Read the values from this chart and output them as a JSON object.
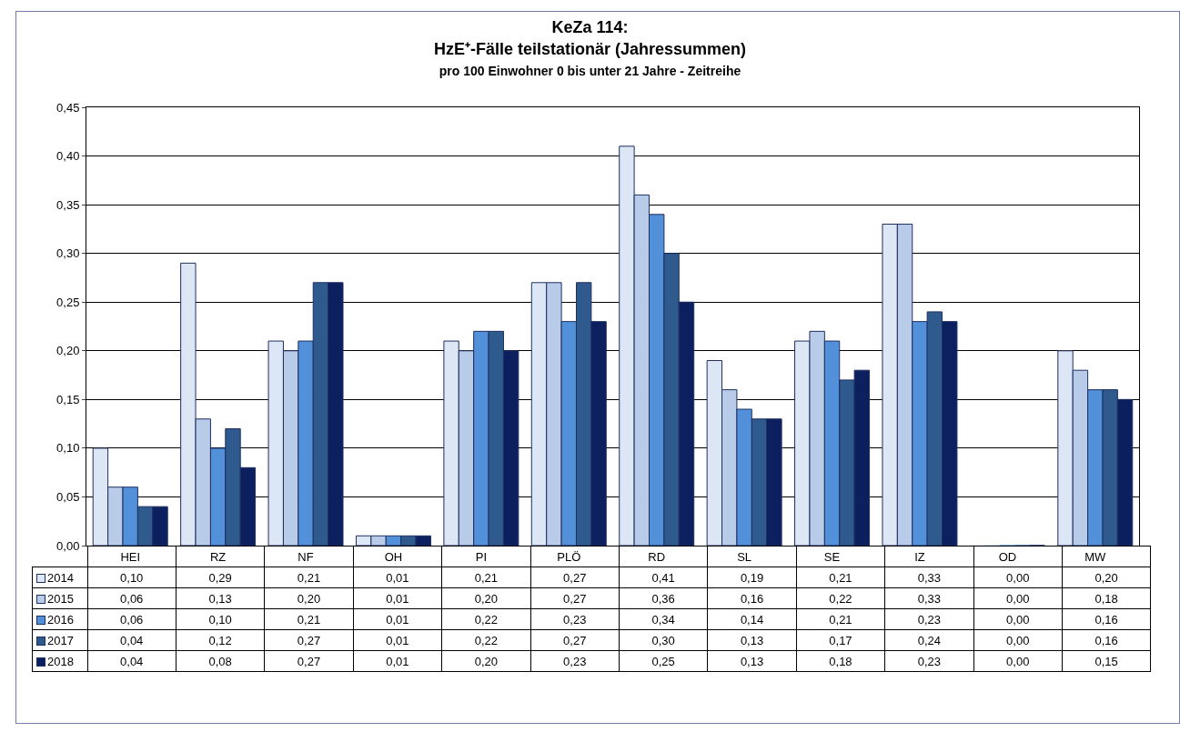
{
  "chart_data": {
    "type": "bar",
    "title": "KeZa 114:\nHzE⁺-Fälle teilstationär (Jahressummen)",
    "subtitle": "pro 100 Einwohner 0 bis unter 21 Jahre - Zeitreihe",
    "categories": [
      "HEI",
      "RZ",
      "NF",
      "OH",
      "PI",
      "PLÖ",
      "RD",
      "SL",
      "SE",
      "IZ",
      "OD",
      "MW"
    ],
    "series": [
      {
        "name": "2014",
        "color": "#dce6f5",
        "values": [
          0.1,
          0.29,
          0.21,
          0.01,
          0.21,
          0.27,
          0.41,
          0.19,
          0.21,
          0.33,
          0.0,
          0.2
        ],
        "value_labels": [
          "0,10",
          "0,29",
          "0,21",
          "0,01",
          "0,21",
          "0,27",
          "0,41",
          "0,19",
          "0,21",
          "0,33",
          "0,00",
          "0,20"
        ]
      },
      {
        "name": "2015",
        "color": "#b8cce9",
        "values": [
          0.06,
          0.13,
          0.2,
          0.01,
          0.2,
          0.27,
          0.36,
          0.16,
          0.22,
          0.33,
          0.0,
          0.18
        ],
        "value_labels": [
          "0,06",
          "0,13",
          "0,20",
          "0,01",
          "0,20",
          "0,27",
          "0,36",
          "0,16",
          "0,22",
          "0,33",
          "0,00",
          "0,18"
        ]
      },
      {
        "name": "2016",
        "color": "#5290d9",
        "values": [
          0.06,
          0.1,
          0.21,
          0.01,
          0.22,
          0.23,
          0.34,
          0.14,
          0.21,
          0.23,
          0.0,
          0.16
        ],
        "value_labels": [
          "0,06",
          "0,10",
          "0,21",
          "0,01",
          "0,22",
          "0,23",
          "0,34",
          "0,14",
          "0,21",
          "0,23",
          "0,00",
          "0,16"
        ]
      },
      {
        "name": "2017",
        "color": "#2e5a8e",
        "values": [
          0.04,
          0.12,
          0.27,
          0.01,
          0.22,
          0.27,
          0.3,
          0.13,
          0.17,
          0.24,
          0.0,
          0.16
        ],
        "value_labels": [
          "0,04",
          "0,12",
          "0,27",
          "0,01",
          "0,22",
          "0,27",
          "0,30",
          "0,13",
          "0,17",
          "0,24",
          "0,00",
          "0,16"
        ]
      },
      {
        "name": "2018",
        "color": "#0c1f5e",
        "values": [
          0.04,
          0.08,
          0.27,
          0.01,
          0.2,
          0.23,
          0.25,
          0.13,
          0.18,
          0.23,
          0.0,
          0.15
        ],
        "value_labels": [
          "0,04",
          "0,08",
          "0,27",
          "0,01",
          "0,20",
          "0,23",
          "0,25",
          "0,13",
          "0,18",
          "0,23",
          "0,00",
          "0,15"
        ]
      }
    ],
    "ylim": [
      0,
      0.45
    ],
    "yticks": [
      {
        "value": 0,
        "label": "0,00"
      },
      {
        "value": 0.05,
        "label": "0,05"
      },
      {
        "value": 0.1,
        "label": "0,10"
      },
      {
        "value": 0.15,
        "label": "0,15"
      },
      {
        "value": 0.2,
        "label": "0,20"
      },
      {
        "value": 0.25,
        "label": "0,25"
      },
      {
        "value": 0.3,
        "label": "0,30"
      },
      {
        "value": 0.35,
        "label": "0,35"
      },
      {
        "value": 0.4,
        "label": "0,40"
      },
      {
        "value": 0.45,
        "label": "0,45"
      }
    ],
    "grid": "y",
    "legend": "bottom left"
  }
}
